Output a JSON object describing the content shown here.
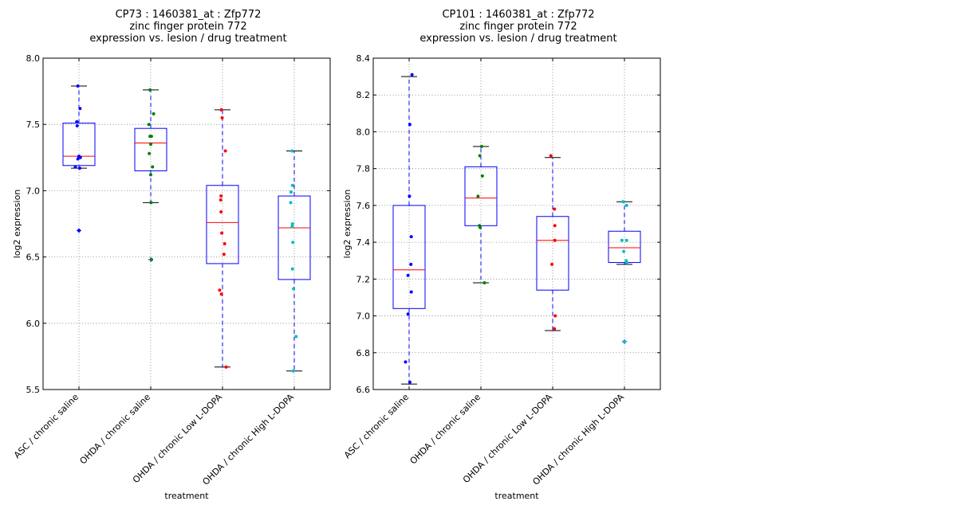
{
  "chart_data": [
    {
      "type": "box",
      "title": [
        "CP73 : 1460381_at : Zfp772",
        "zinc finger protein 772",
        "expression vs. lesion / drug treatment"
      ],
      "xlabel": "treatment",
      "ylabel": "log2 expression",
      "ylim": [
        5.5,
        8.0
      ],
      "yticks": [
        "5.5",
        "6.0",
        "6.5",
        "7.0",
        "7.5",
        "8.0"
      ],
      "grid": true,
      "categories": [
        "ASC / chronic saline",
        "OHDA / chronic saline",
        "OHDA / chronic Low L-DOPA",
        "OHDA / chronic High L-DOPA"
      ],
      "point_colors": [
        "#0000ff",
        "#008000",
        "#ff0000",
        "#00bfbf"
      ],
      "boxes": [
        {
          "q1": 7.19,
          "median": 7.26,
          "q3": 7.51,
          "whisker_low": 7.17,
          "whisker_high": 7.79,
          "fliers": [
            6.7
          ]
        },
        {
          "q1": 7.15,
          "median": 7.36,
          "q3": 7.47,
          "whisker_low": 6.91,
          "whisker_high": 7.76,
          "fliers": [
            6.48
          ]
        },
        {
          "q1": 6.45,
          "median": 6.76,
          "q3": 7.04,
          "whisker_low": 5.67,
          "whisker_high": 7.61,
          "fliers": []
        },
        {
          "q1": 6.33,
          "median": 6.72,
          "q3": 6.96,
          "whisker_low": 5.64,
          "whisker_high": 7.3,
          "fliers": []
        }
      ],
      "points": [
        [
          [
            -0.03,
            7.79
          ],
          [
            0.03,
            7.62
          ],
          [
            -0.06,
            7.52
          ],
          [
            -0.05,
            7.49
          ],
          [
            0.0,
            7.26
          ],
          [
            0.04,
            7.25
          ],
          [
            -0.03,
            7.24
          ],
          [
            -0.1,
            7.18
          ],
          [
            0.02,
            7.17
          ],
          [
            0.0,
            6.7
          ]
        ],
        [
          [
            -0.02,
            7.76
          ],
          [
            0.08,
            7.58
          ],
          [
            -0.05,
            7.5
          ],
          [
            -0.02,
            7.41
          ],
          [
            0.02,
            7.41
          ],
          [
            0.0,
            7.35
          ],
          [
            -0.04,
            7.28
          ],
          [
            0.05,
            7.18
          ],
          [
            0.0,
            7.12
          ],
          [
            0.01,
            6.91
          ],
          [
            0.02,
            6.48
          ]
        ],
        [
          [
            -0.03,
            7.61
          ],
          [
            -0.01,
            7.55
          ],
          [
            0.08,
            7.3
          ],
          [
            -0.04,
            6.96
          ],
          [
            -0.05,
            6.93
          ],
          [
            -0.04,
            6.84
          ],
          [
            -0.02,
            6.68
          ],
          [
            0.06,
            6.6
          ],
          [
            0.04,
            6.52
          ],
          [
            -0.08,
            6.25
          ],
          [
            -0.03,
            6.22
          ],
          [
            0.1,
            5.67
          ]
        ],
        [
          [
            -0.06,
            7.3
          ],
          [
            -0.05,
            7.04
          ],
          [
            -0.09,
            6.99
          ],
          [
            -0.1,
            6.91
          ],
          [
            -0.05,
            6.75
          ],
          [
            -0.06,
            6.73
          ],
          [
            -0.04,
            6.61
          ],
          [
            -0.05,
            6.41
          ],
          [
            -0.02,
            6.26
          ],
          [
            0.05,
            5.9
          ],
          [
            -0.03,
            5.64
          ]
        ]
      ]
    },
    {
      "type": "box",
      "title": [
        "CP101 : 1460381_at : Zfp772",
        "zinc finger protein 772",
        "expression vs. lesion / drug treatment"
      ],
      "xlabel": "treatment",
      "ylabel": "log2 expression",
      "ylim": [
        6.6,
        8.4
      ],
      "yticks": [
        "6.6",
        "6.8",
        "7.0",
        "7.2",
        "7.4",
        "7.6",
        "7.8",
        "8.0",
        "8.2",
        "8.4"
      ],
      "grid": true,
      "categories": [
        "ASC / chronic saline",
        "OHDA / chronic saline",
        "OHDA / chronic Low L-DOPA",
        "OHDA / chronic High L-DOPA"
      ],
      "point_colors": [
        "#0000ff",
        "#008000",
        "#ff0000",
        "#00bfbf"
      ],
      "boxes": [
        {
          "q1": 7.04,
          "median": 7.25,
          "q3": 7.6,
          "whisker_low": 6.63,
          "whisker_high": 8.3,
          "fliers": []
        },
        {
          "q1": 7.49,
          "median": 7.64,
          "q3": 7.81,
          "whisker_low": 7.18,
          "whisker_high": 7.92,
          "fliers": []
        },
        {
          "q1": 7.14,
          "median": 7.41,
          "q3": 7.54,
          "whisker_low": 6.92,
          "whisker_high": 7.86,
          "fliers": []
        },
        {
          "q1": 7.29,
          "median": 7.37,
          "q3": 7.46,
          "whisker_low": 7.28,
          "whisker_high": 7.62,
          "fliers": [
            6.86
          ]
        }
      ],
      "points": [
        [
          [
            0.08,
            8.31
          ],
          [
            0.02,
            8.04
          ],
          [
            0.01,
            7.65
          ],
          [
            0.06,
            7.43
          ],
          [
            0.05,
            7.28
          ],
          [
            -0.03,
            7.22
          ],
          [
            0.06,
            7.13
          ],
          [
            -0.03,
            7.01
          ],
          [
            -0.1,
            6.75
          ],
          [
            0.02,
            6.64
          ]
        ],
        [
          [
            0.02,
            7.92
          ],
          [
            -0.03,
            7.87
          ],
          [
            0.04,
            7.76
          ],
          [
            -0.08,
            7.65
          ],
          [
            -0.04,
            7.49
          ],
          [
            -0.02,
            7.48
          ],
          [
            0.1,
            7.18
          ]
        ],
        [
          [
            -0.05,
            7.87
          ],
          [
            0.05,
            7.58
          ],
          [
            0.06,
            7.49
          ],
          [
            0.06,
            7.41
          ],
          [
            -0.02,
            7.28
          ],
          [
            0.07,
            7.0
          ],
          [
            0.05,
            6.93
          ]
        ],
        [
          [
            -0.04,
            7.62
          ],
          [
            0.06,
            7.6
          ],
          [
            -0.07,
            7.41
          ],
          [
            0.06,
            7.41
          ],
          [
            -0.02,
            7.35
          ],
          [
            0.05,
            7.3
          ],
          [
            0.06,
            7.29
          ],
          [
            0.0,
            6.86
          ]
        ]
      ]
    }
  ]
}
